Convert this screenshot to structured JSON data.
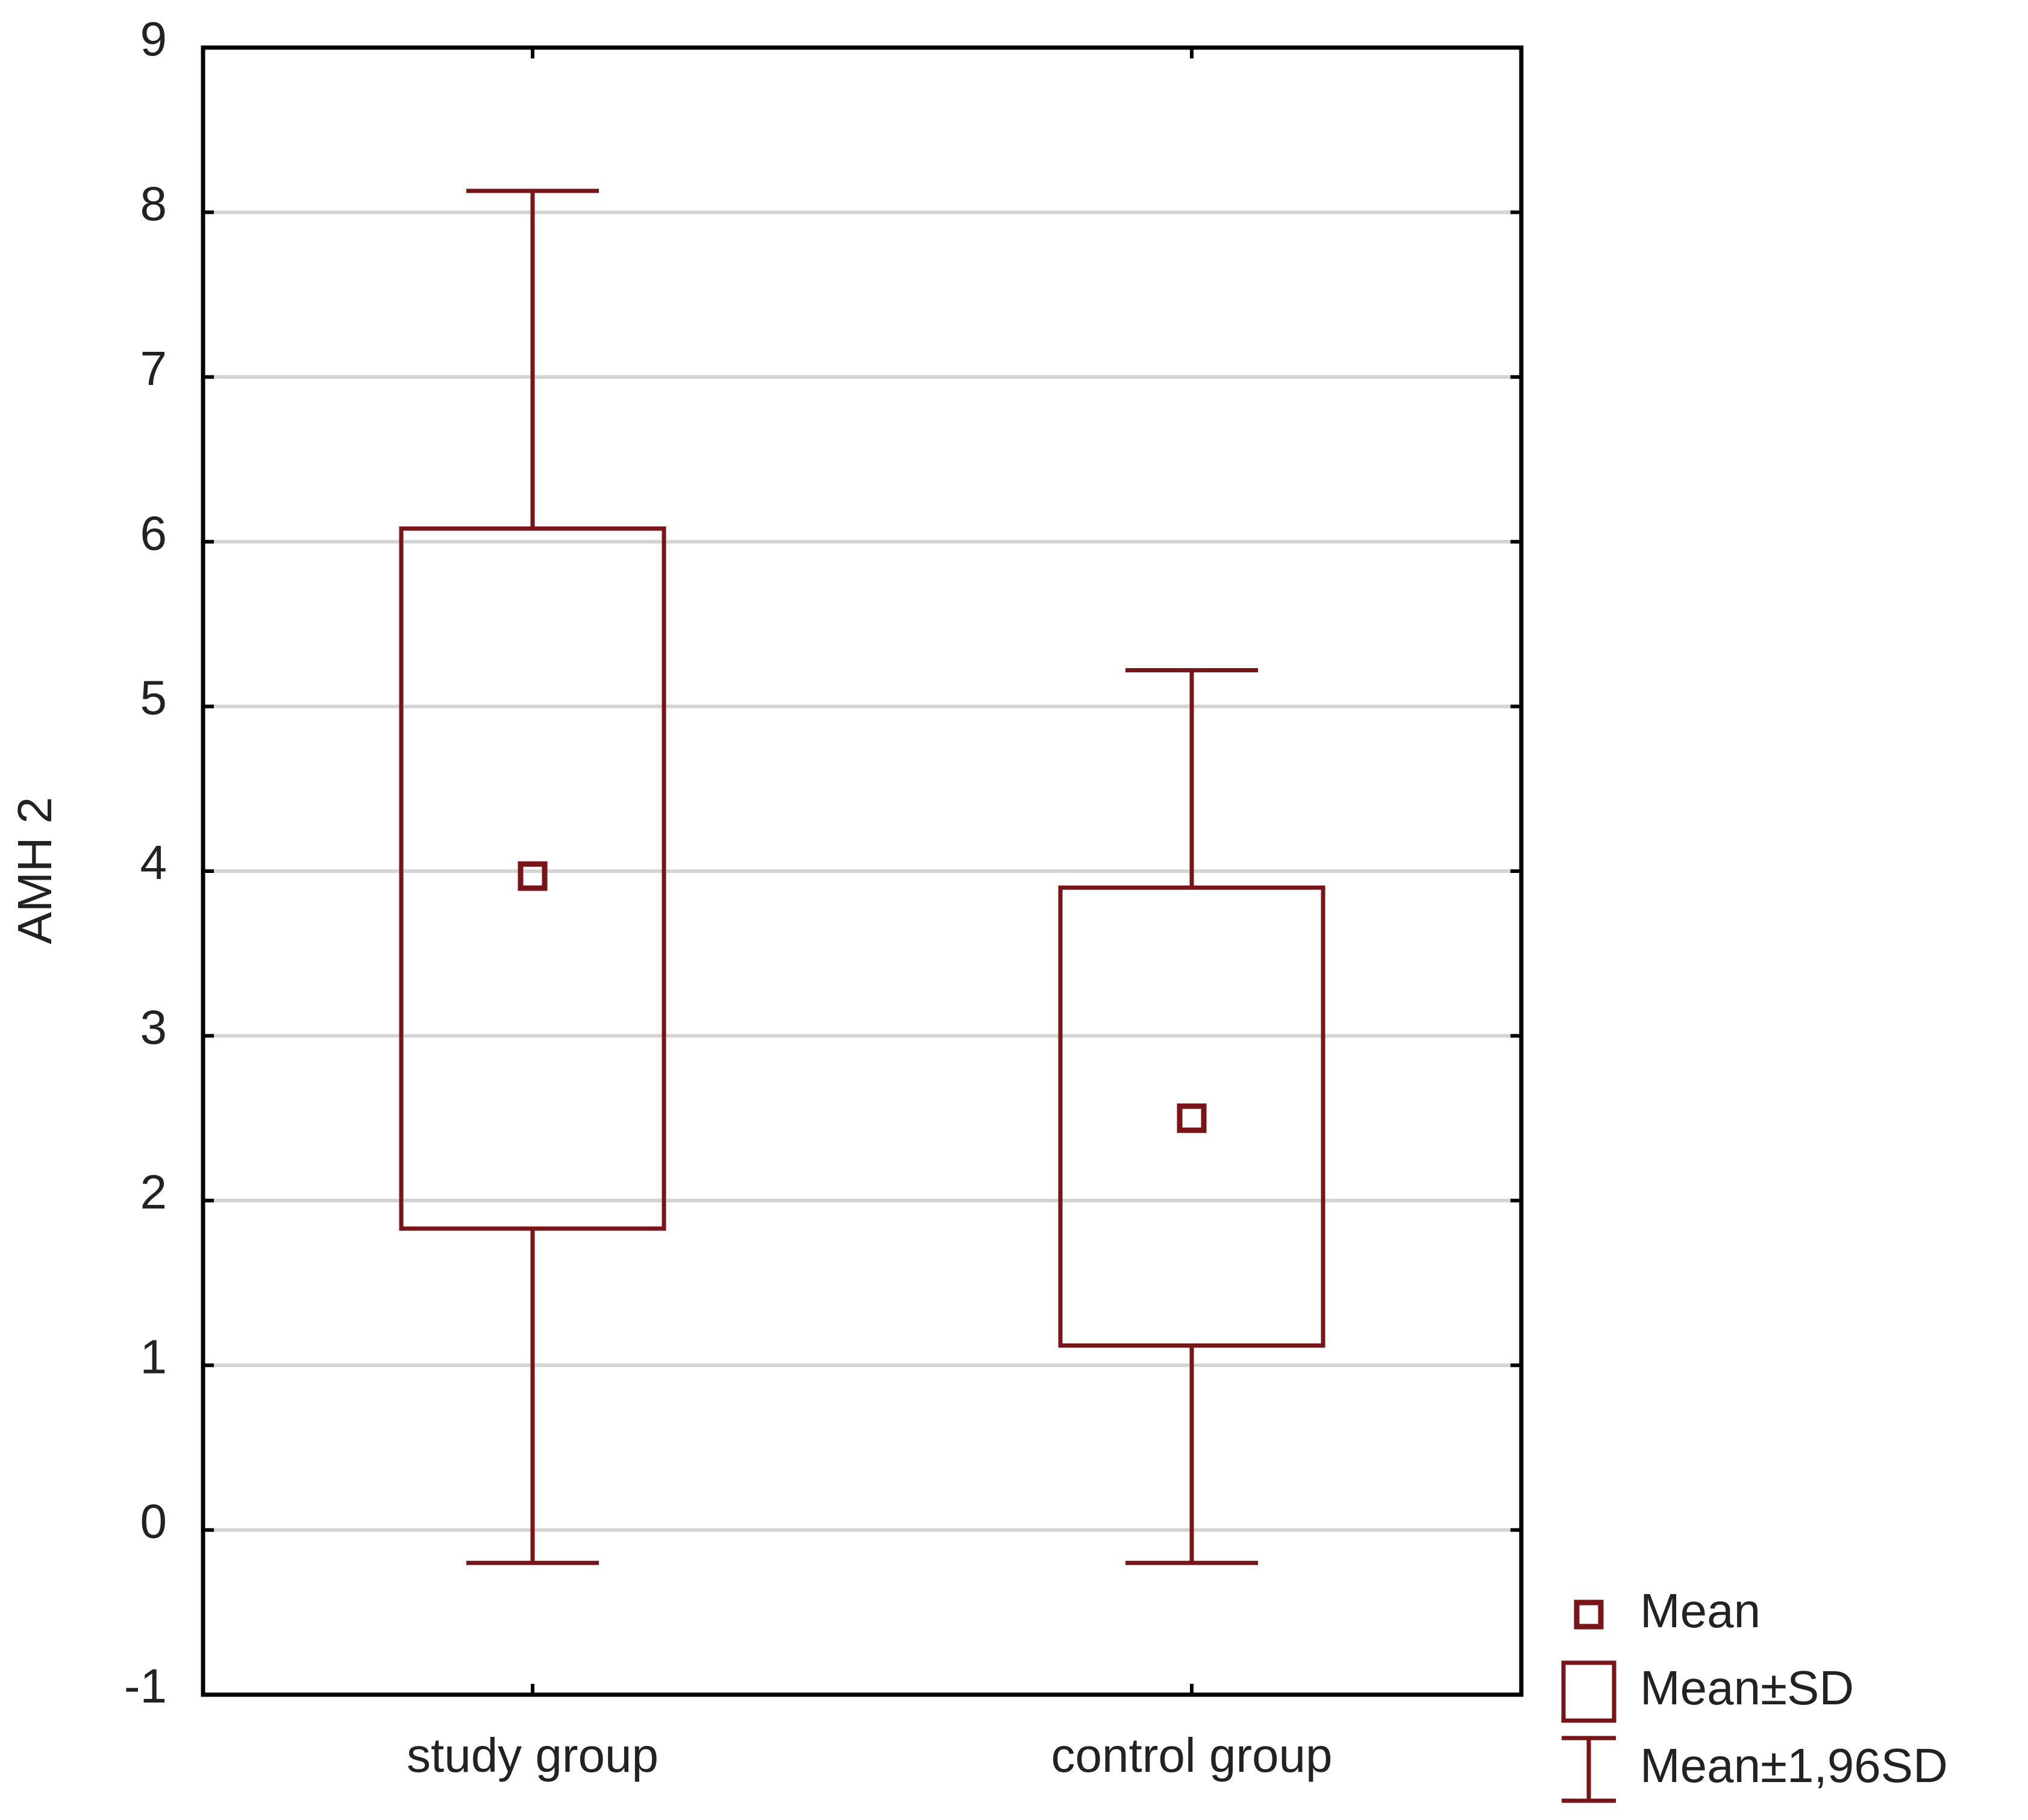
{
  "chart_data": {
    "type": "box",
    "categories": [
      "study  group",
      "control group"
    ],
    "mean": [
      3.97,
      2.5
    ],
    "sd_low": [
      1.83,
      1.12
    ],
    "sd_high": [
      6.08,
      3.9
    ],
    "ci_low": [
      -0.2,
      -0.2
    ],
    "ci_high": [
      8.13,
      5.22
    ],
    "ylabel": "AMH 2",
    "ylim": [
      -1,
      9
    ],
    "yticks": [
      -1,
      0,
      1,
      2,
      3,
      4,
      5,
      6,
      7,
      8,
      9
    ],
    "grid": true,
    "color": "#7b1416",
    "legend": [
      "Mean",
      "Mean±SD",
      "Mean±1,96SD"
    ]
  }
}
